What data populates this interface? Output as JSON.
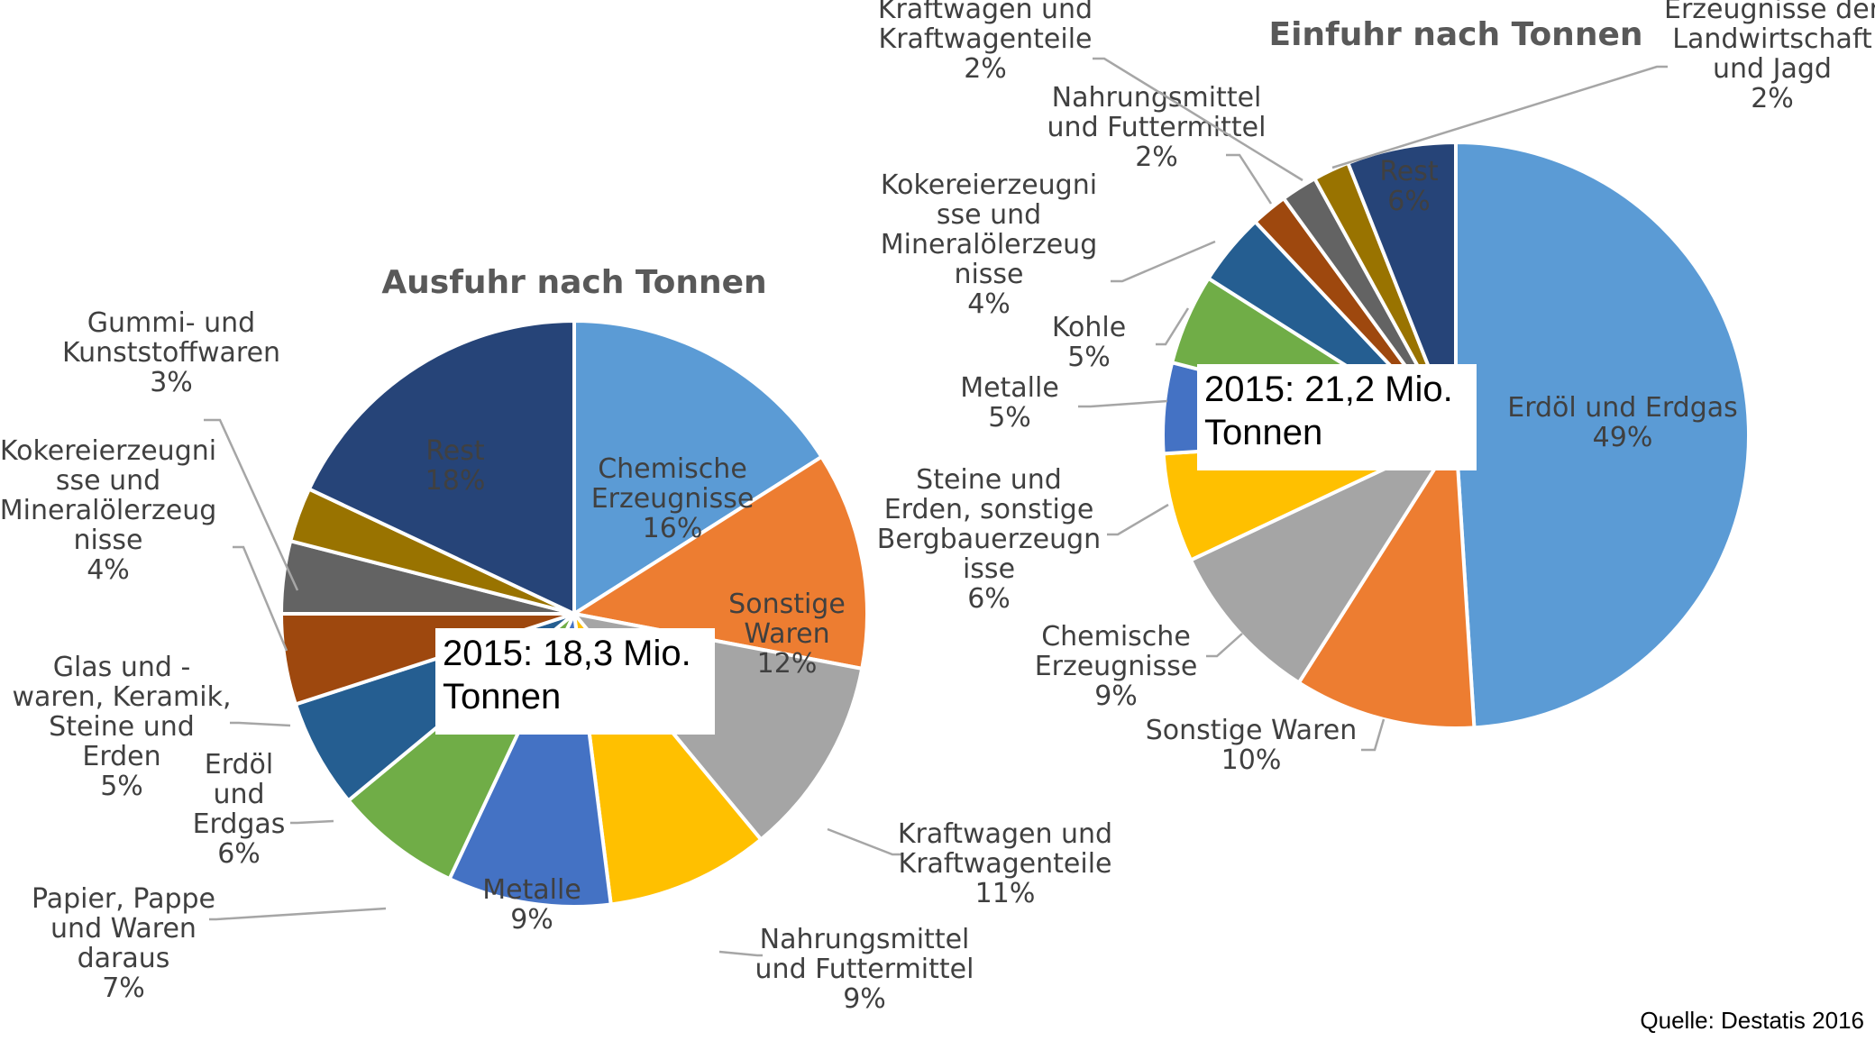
{
  "chart_data": [
    {
      "type": "pie",
      "title": "Ausfuhr nach Tonnen",
      "total_label": "2015: 18,3 Mio. Tonnen",
      "slices": [
        {
          "label": "Chemische Erzeugnisse",
          "value": 16,
          "pct": "16%",
          "color": "#5b9bd5"
        },
        {
          "label": "Sonstige Waren",
          "value": 12,
          "pct": "12%",
          "color": "#ed7d31"
        },
        {
          "label": "Kraftwagen und Kraftwagenteile",
          "value": 11,
          "pct": "11%",
          "color": "#a5a5a5"
        },
        {
          "label": "Nahrungsmittel und Futtermittel",
          "value": 9,
          "pct": "9%",
          "color": "#ffc000"
        },
        {
          "label": "Metalle",
          "value": 9,
          "pct": "9%",
          "color": "#4472c4"
        },
        {
          "label": "Papier, Pappe und Waren daraus",
          "value": 7,
          "pct": "7%",
          "color": "#70ad47"
        },
        {
          "label": "Erdöl und Erdgas",
          "value": 6,
          "pct": "6%",
          "color": "#255e91"
        },
        {
          "label": "Glas und -waren, Keramik, Steine und Erden",
          "value": 5,
          "pct": "5%",
          "color": "#9e480e"
        },
        {
          "label": "Kokereierzeugnisse und Mineralölerzeugnisse",
          "value": 4,
          "pct": "4%",
          "color": "#636363"
        },
        {
          "label": "Gummi- und Kunststoffwaren",
          "value": 3,
          "pct": "3%",
          "color": "#997300"
        },
        {
          "label": "Rest",
          "value": 18,
          "pct": "18%",
          "color": "#264478"
        }
      ]
    },
    {
      "type": "pie",
      "title": "Einfuhr nach Tonnen",
      "total_label": "2015: 21,2 Mio. Tonnen",
      "slices": [
        {
          "label": "Erdöl und Erdgas",
          "value": 49,
          "pct": "49%",
          "color": "#5b9bd5"
        },
        {
          "label": "Sonstige Waren",
          "value": 10,
          "pct": "10%",
          "color": "#ed7d31"
        },
        {
          "label": "Chemische Erzeugnisse",
          "value": 9,
          "pct": "9%",
          "color": "#a5a5a5"
        },
        {
          "label": "Steine und Erden, sonstige Bergbauerzeugnisse",
          "value": 6,
          "pct": "6%",
          "color": "#ffc000"
        },
        {
          "label": "Metalle",
          "value": 5,
          "pct": "5%",
          "color": "#4472c4"
        },
        {
          "label": "Kohle",
          "value": 5,
          "pct": "5%",
          "color": "#70ad47"
        },
        {
          "label": "Kokereierzeugnisse und Mineralölerzeugnisse",
          "value": 4,
          "pct": "4%",
          "color": "#255e91"
        },
        {
          "label": "Nahrungsmittel und Futtermittel",
          "value": 2,
          "pct": "2%",
          "color": "#9e480e"
        },
        {
          "label": "Kraftwagen und Kraftwagenteile",
          "value": 2,
          "pct": "2%",
          "color": "#636363"
        },
        {
          "label": "Erzeugnisse der Landwirtschaft und Jagd",
          "value": 2,
          "pct": "2%",
          "color": "#997300"
        },
        {
          "label": "Rest",
          "value": 6,
          "pct": "6%",
          "color": "#264478"
        }
      ]
    }
  ],
  "source": "Quelle: Destatis 2016"
}
